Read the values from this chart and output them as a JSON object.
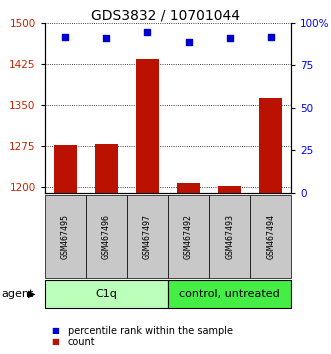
{
  "title": "GDS3832 / 10701044",
  "samples": [
    "GSM467495",
    "GSM467496",
    "GSM467497",
    "GSM467492",
    "GSM467493",
    "GSM467494"
  ],
  "group_colors_map": {
    "C1q": "#bbffbb",
    "control, untreated": "#44ee44"
  },
  "group_spans": [
    [
      "C1q",
      0,
      3
    ],
    [
      "control, untreated",
      3,
      6
    ]
  ],
  "counts": [
    1278,
    1280,
    1435,
    1208,
    1202,
    1363
  ],
  "percentiles": [
    92,
    91,
    95,
    89,
    91,
    92
  ],
  "ylim_left": [
    1190,
    1500
  ],
  "ylim_right": [
    0,
    100
  ],
  "yticks_left": [
    1200,
    1275,
    1350,
    1425,
    1500
  ],
  "yticks_right": [
    0,
    25,
    50,
    75,
    100
  ],
  "right_tick_labels": [
    "0",
    "25",
    "50",
    "75",
    "100%"
  ],
  "bar_color": "#bb1100",
  "dot_color": "#0000cc",
  "bar_bottom": 1190,
  "agent_label": "agent",
  "count_label": "count",
  "percentile_label": "percentile rank within the sample",
  "title_fontsize": 10,
  "tick_fontsize": 7.5,
  "sample_fontsize": 6,
  "group_fontsize": 8,
  "legend_fontsize": 7
}
